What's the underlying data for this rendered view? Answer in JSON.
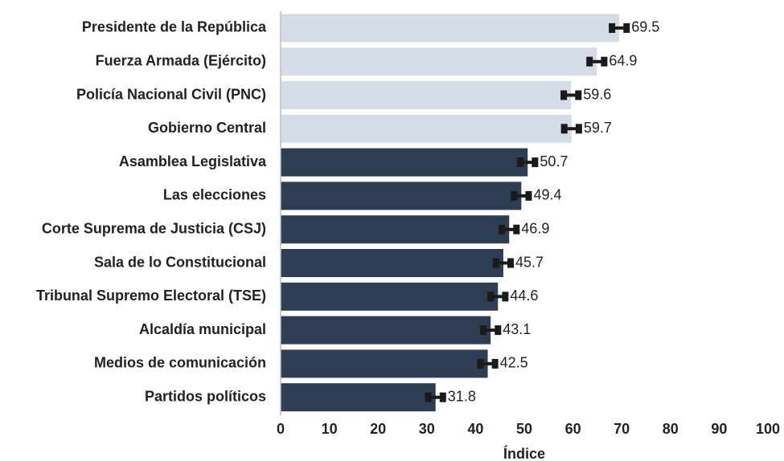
{
  "chart_data": {
    "type": "barh",
    "categories": [
      "Presidente de la República",
      "Fuerza Armada (Ejército)",
      "Policía Nacional Civil (PNC)",
      "Gobierno Central",
      "Asamblea Legislativa",
      "Las elecciones",
      "Corte Suprema de Justicia (CSJ)",
      "Sala de lo Constitucional",
      "Tribunal Supremo Electoral (TSE)",
      "Alcaldía municipal",
      "Medios de comunicación",
      "Partidos políticos"
    ],
    "values": [
      69.5,
      64.9,
      59.6,
      59.7,
      50.7,
      49.4,
      46.9,
      45.7,
      44.6,
      43.1,
      42.5,
      31.8
    ],
    "errors": [
      1.5,
      1.5,
      1.5,
      1.5,
      1.5,
      1.5,
      1.5,
      1.5,
      1.5,
      1.5,
      1.5,
      1.5
    ],
    "colors": [
      "#d5dce6",
      "#d5dce6",
      "#d5dce6",
      "#d5dce6",
      "#2e3e52",
      "#2e3e52",
      "#2e3e52",
      "#2e3e52",
      "#2e3e52",
      "#2e3e52",
      "#2e3e52",
      "#2e3e52"
    ],
    "error_color": "#1a1a1a",
    "xlabel": "Índice",
    "xlim": [
      0,
      100
    ],
    "xticks": [
      0,
      10,
      20,
      30,
      40,
      50,
      60,
      70,
      80,
      90,
      100
    ],
    "grid": false
  }
}
